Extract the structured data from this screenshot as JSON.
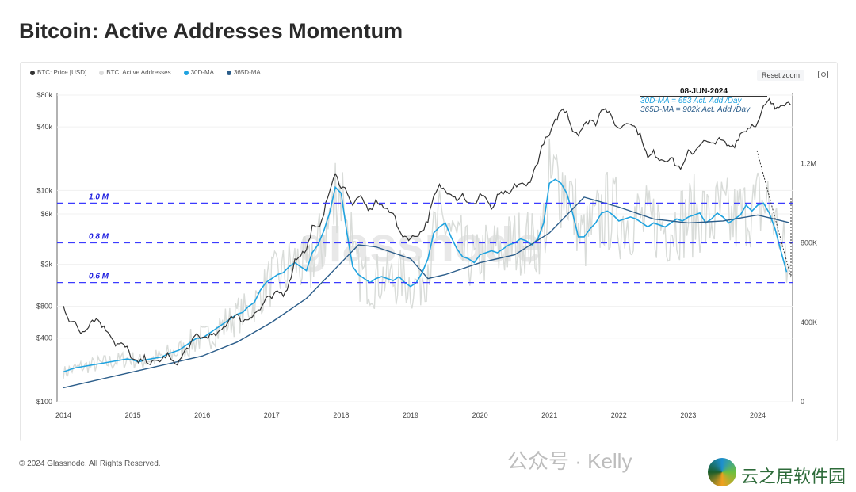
{
  "title": "Bitcoin: Active Addresses Momentum",
  "toolbar": {
    "reset_zoom": "Reset zoom",
    "camera_icon": "camera-icon"
  },
  "footer": "© 2024 Glassnode. All Rights Reserved.",
  "watermarks": {
    "wechat": "公众号 · Kelly",
    "site": "云之居软件园",
    "chart": "glassnode"
  },
  "chart_data": {
    "type": "line",
    "title": "Bitcoin: Active Addresses Momentum",
    "legend": [
      "BTC: Price [USD]",
      "BTC: Active Addresses",
      "30D-MA",
      "365D-MA"
    ],
    "legend_placement": "top-left",
    "colors": {
      "price": "#333333",
      "active": "#d9dcd9",
      "ma30": "#1fa3e0",
      "ma365": "#2b5d8a",
      "threshold": "#3b3bff"
    },
    "x_ticks": [
      "2014",
      "2015",
      "2016",
      "2017",
      "2018",
      "2019",
      "2020",
      "2021",
      "2022",
      "2023",
      "2024"
    ],
    "x_range": [
      2014,
      2024.5
    ],
    "y_left": {
      "scale": "log",
      "range": [
        100,
        80000
      ],
      "ticks": [
        {
          "v": 80000,
          "l": "$80k"
        },
        {
          "v": 40000,
          "l": "$40k"
        },
        {
          "v": 10000,
          "l": "$10k"
        },
        {
          "v": 6000,
          "l": "$6k"
        },
        {
          "v": 2000,
          "l": "$2k"
        },
        {
          "v": 800,
          "l": "$800"
        },
        {
          "v": 400,
          "l": "$400"
        },
        {
          "v": 100,
          "l": "$100"
        }
      ]
    },
    "y_right": {
      "scale": "linear",
      "range": [
        0,
        1600000
      ],
      "ticks": [
        {
          "v": 0,
          "l": "0"
        },
        {
          "v": 400000,
          "l": "400K"
        },
        {
          "v": 800000,
          "l": "800K"
        },
        {
          "v": 1200000,
          "l": "1.2M"
        }
      ]
    },
    "thresholds": [
      {
        "v": 1000000,
        "l": "1.0 M"
      },
      {
        "v": 800000,
        "l": "0.8 M"
      },
      {
        "v": 600000,
        "l": "0.6 M"
      }
    ],
    "annotation": {
      "date": "08-JUN-2024",
      "ma30": "30D-MA = 653 Act. Add /Day",
      "ma365": "365D-MA = 902k  Act. Add /Day"
    },
    "series": [
      {
        "name": "BTC: Price [USD]",
        "start": 2014,
        "step": "month",
        "values": [
          800,
          600,
          550,
          450,
          500,
          600,
          600,
          500,
          450,
          350,
          350,
          320,
          250,
          230,
          260,
          230,
          240,
          250,
          280,
          230,
          240,
          300,
          350,
          430,
          400,
          420,
          420,
          450,
          530,
          650,
          650,
          580,
          610,
          700,
          740,
          950,
          950,
          1100,
          1050,
          1300,
          2200,
          2500,
          2700,
          4500,
          4300,
          6200,
          10000,
          14000,
          11000,
          10000,
          7000,
          9000,
          7500,
          6400,
          8000,
          7000,
          6600,
          6300,
          4000,
          3700,
          3500,
          3800,
          4100,
          5300,
          8500,
          11000,
          10000,
          9600,
          8300,
          9200,
          7500,
          7200,
          9300,
          8600,
          6400,
          8700,
          9500,
          9100,
          11000,
          11700,
          10800,
          13700,
          19000,
          29000,
          33000,
          45000,
          58000,
          57000,
          37000,
          35000,
          41000,
          47000,
          43000,
          61000,
          57000,
          46000,
          38000,
          43000,
          45000,
          38000,
          31000,
          20000,
          23000,
          20000,
          19500,
          20500,
          17000,
          16500,
          23000,
          23000,
          28000,
          29000,
          27000,
          30500,
          29000,
          26000,
          27000,
          34500,
          37500,
          42000,
          43000,
          61000,
          71000,
          60000,
          67000,
          67000
        ]
      },
      {
        "name": "30D-MA",
        "start": 2014,
        "step": "month",
        "values": [
          150,
          160,
          170,
          175,
          180,
          185,
          190,
          195,
          200,
          205,
          210,
          215,
          210,
          200,
          210,
          215,
          220,
          225,
          240,
          250,
          260,
          280,
          300,
          320,
          320,
          340,
          360,
          380,
          400,
          420,
          440,
          450,
          480,
          500,
          560,
          600,
          620,
          640,
          650,
          680,
          700,
          680,
          660,
          750,
          790,
          860,
          950,
          1080,
          1050,
          850,
          680,
          640,
          620,
          600,
          620,
          630,
          620,
          610,
          630,
          600,
          580,
          600,
          650,
          720,
          850,
          880,
          900,
          830,
          770,
          730,
          720,
          700,
          740,
          750,
          760,
          750,
          770,
          790,
          800,
          820,
          810,
          790,
          820,
          900,
          1100,
          1120,
          1100,
          1050,
          950,
          830,
          830,
          870,
          900,
          950,
          960,
          940,
          910,
          920,
          930,
          920,
          900,
          880,
          900,
          890,
          880,
          900,
          920,
          910,
          930,
          940,
          950,
          900,
          920,
          950,
          930,
          900,
          920,
          940,
          990,
          960,
          990,
          1000,
          950,
          870,
          760,
          653
        ],
        "unit": "thousand"
      },
      {
        "name": "365D-MA",
        "unit": "thousand",
        "points": [
          [
            2014,
            70
          ],
          [
            2014.5,
            110
          ],
          [
            2015,
            150
          ],
          [
            2015.5,
            190
          ],
          [
            2016,
            230
          ],
          [
            2016.5,
            300
          ],
          [
            2017,
            400
          ],
          [
            2017.5,
            520
          ],
          [
            2018,
            700
          ],
          [
            2018.25,
            790
          ],
          [
            2018.5,
            780
          ],
          [
            2019,
            720
          ],
          [
            2019.25,
            620
          ],
          [
            2019.5,
            640
          ],
          [
            2020,
            700
          ],
          [
            2020.5,
            740
          ],
          [
            2021,
            850
          ],
          [
            2021.5,
            1030
          ],
          [
            2022,
            980
          ],
          [
            2022.5,
            920
          ],
          [
            2023,
            900
          ],
          [
            2023.5,
            910
          ],
          [
            2024,
            940
          ],
          [
            2024.45,
            902
          ]
        ]
      }
    ]
  }
}
